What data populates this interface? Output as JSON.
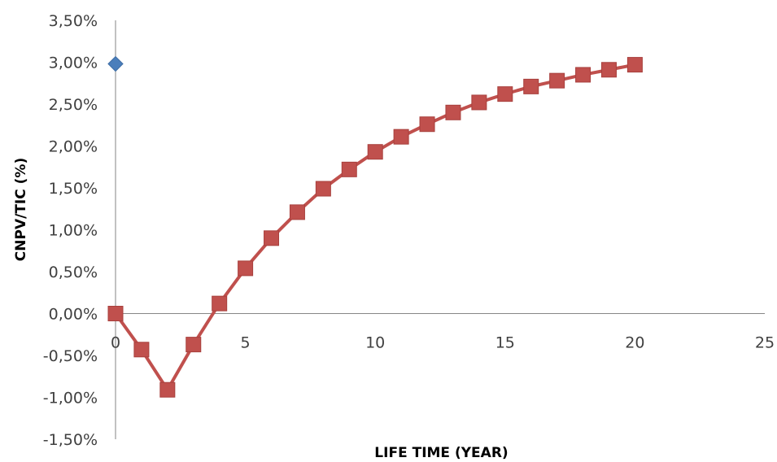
{
  "chart_data": {
    "type": "scatter",
    "title": "",
    "xlabel": "LIFE TIME (YEAR)",
    "ylabel": "CNPV/TIC (%)",
    "xlim": [
      0,
      25
    ],
    "ylim": [
      -1.5,
      3.5
    ],
    "x_ticks": [
      0,
      5,
      10,
      15,
      20,
      25
    ],
    "x_tick_labels": [
      "0",
      "5",
      "10",
      "15",
      "20",
      "25"
    ],
    "y_ticks": [
      3.5,
      3.0,
      2.5,
      2.0,
      1.5,
      1.0,
      0.5,
      0.0,
      -0.5,
      -1.0,
      -1.5
    ],
    "y_tick_labels": [
      "3,50%",
      "3,00%",
      "2,50%",
      "2,00%",
      "1,50%",
      "1,00%",
      "0,50%",
      "0,00%",
      "-0,50%",
      "-1,00%",
      "-1,50%"
    ],
    "grid": false,
    "legend": "none",
    "series": [
      {
        "marker": "diamond",
        "color": "#4a7ebb",
        "line": false,
        "x": [
          0
        ],
        "y": [
          2.98
        ]
      },
      {
        "marker": "square",
        "color": "#c0504d",
        "line": true,
        "x": [
          0,
          1,
          2,
          3,
          4,
          5,
          6,
          7,
          8,
          9,
          10,
          11,
          12,
          13,
          14,
          15,
          16,
          17,
          18,
          19,
          20
        ],
        "y": [
          0.0,
          -0.43,
          -0.91,
          -0.37,
          0.12,
          0.54,
          0.9,
          1.21,
          1.49,
          1.72,
          1.93,
          2.11,
          2.26,
          2.4,
          2.52,
          2.62,
          2.71,
          2.78,
          2.85,
          2.91,
          2.97
        ]
      }
    ]
  }
}
